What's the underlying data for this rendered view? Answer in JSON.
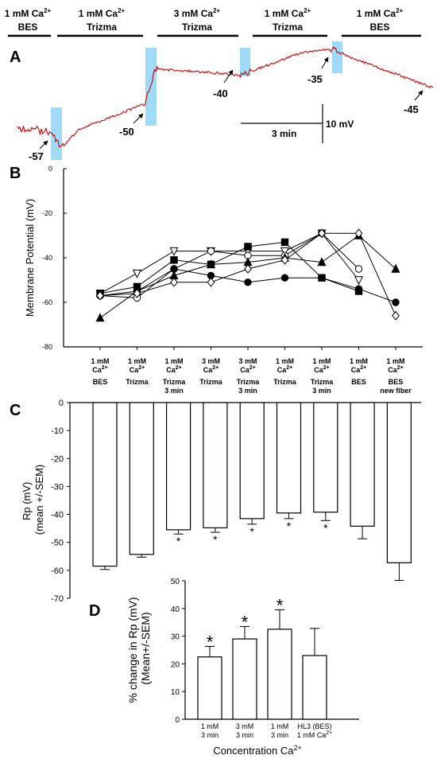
{
  "chart_data": [
    {
      "panel": "A",
      "type": "line",
      "label": "A",
      "condition_bars": [
        {
          "line1": "1 mM Ca",
          "line2": "BES",
          "sup": "2+"
        },
        {
          "line1": "1 mM Ca",
          "line2": "Trizma",
          "sup": "2+"
        },
        {
          "line1": "3 mM Ca",
          "line2": "Trizma",
          "sup": "2+"
        },
        {
          "line1": "1 mM Ca",
          "line2": "Trizma",
          "sup": "2+"
        },
        {
          "line1": "1 mM Ca",
          "line2": "BES",
          "sup": "2+"
        }
      ],
      "trace_levels_mV": [
        -57,
        -50,
        -40,
        -35,
        -45
      ],
      "value_labels": [
        "-57",
        "-50",
        "-40",
        "-35",
        "-45"
      ],
      "scale_bar": {
        "time": "3 min",
        "voltage": "10 mV"
      },
      "trace_color": "#cc0000",
      "highlight_color": "#8fd3f4"
    },
    {
      "panel": "B",
      "type": "line",
      "label": "B",
      "ylabel": "Membrane Potential (mV)",
      "ylim": [
        -80,
        0
      ],
      "yticks": [
        "0",
        "-20",
        "-40",
        "-60",
        "-80"
      ],
      "categories": [
        {
          "l1": "1 mM",
          "l2": "Ca",
          "sup": "2+",
          "l3": "BES",
          "l4": ""
        },
        {
          "l1": "1 mM",
          "l2": "Ca",
          "sup": "2+",
          "l3": "Trizma",
          "l4": ""
        },
        {
          "l1": "1 mM",
          "l2": "Ca",
          "sup": "2+",
          "l3": "Trizma",
          "l4": "3 min"
        },
        {
          "l1": "3 mM",
          "l2": "Ca",
          "sup": "2+",
          "l3": "Trizma",
          "l4": ""
        },
        {
          "l1": "3 mM",
          "l2": "Ca",
          "sup": "2+",
          "l3": "Trizma",
          "l4": "3 min"
        },
        {
          "l1": "1 mM",
          "l2": "Ca",
          "sup": "2+",
          "l3": "Trizma",
          "l4": ""
        },
        {
          "l1": "1 mM",
          "l2": "Ca",
          "sup": "2+",
          "l3": "Trizma",
          "l4": "3 min"
        },
        {
          "l1": "1 mM",
          "l2": "Ca",
          "sup": "2+",
          "l3": "BES",
          "l4": ""
        },
        {
          "l1": "1 mM",
          "l2": "Ca",
          "sup": "2+",
          "l3": "BES",
          "l4": "new fiber"
        }
      ],
      "series": [
        {
          "marker": "triangle-down-open",
          "values": [
            -56,
            -47,
            -37,
            -37,
            -37,
            -37,
            -29,
            -50,
            null
          ]
        },
        {
          "marker": "circle-open",
          "values": [
            -57,
            -58,
            -45,
            -37,
            -39,
            -39,
            -29,
            -45,
            null
          ]
        },
        {
          "marker": "square-filled",
          "values": [
            -56,
            -53,
            -41,
            -43,
            -35,
            -33,
            -49,
            -55,
            null
          ]
        },
        {
          "marker": "circle-filled",
          "values": [
            -57,
            -55,
            -45,
            -48,
            -51,
            -49,
            -49,
            -54,
            -60
          ]
        },
        {
          "marker": "triangle-up-filled",
          "values": [
            -67,
            -55,
            -48,
            -43,
            -42,
            -40,
            -42,
            -30,
            -45
          ]
        },
        {
          "marker": "diamond-open",
          "values": [
            -57,
            -56,
            -51,
            -51,
            -45,
            -41,
            -29,
            -29,
            -66
          ]
        }
      ]
    },
    {
      "panel": "C",
      "type": "bar",
      "label": "C",
      "ylabel_line1": "Rp (mV)",
      "ylabel_line2": "(mean +/-SEM)",
      "ylim": [
        -70,
        0
      ],
      "yticks": [
        "0",
        "-10",
        "-20",
        "-30",
        "-40",
        "-50",
        "-60",
        "-70"
      ],
      "values": [
        -58.5,
        -54.3,
        -45.5,
        -44.8,
        -41.5,
        -39.5,
        -39.2,
        -44.2,
        -57.3
      ],
      "sem": [
        1.2,
        1.0,
        1.5,
        1.6,
        2.0,
        2.0,
        3.0,
        4.5,
        6.3
      ],
      "significant": [
        false,
        false,
        true,
        true,
        true,
        true,
        true,
        false,
        false
      ],
      "star": "*"
    },
    {
      "panel": "D",
      "type": "bar",
      "label": "D",
      "ylabel_line1": "% change in Rp (mV)",
      "ylabel_line2": "(Mean+/-SEM)",
      "xlabel": "Concentration Ca",
      "xlabel_sup": "2+",
      "ylim": [
        0,
        50
      ],
      "yticks": [
        "0",
        "10",
        "20",
        "30",
        "40",
        "50"
      ],
      "categories": [
        {
          "l1": "1 mM",
          "l2": "3 min",
          "sup": ""
        },
        {
          "l1": "3 mM",
          "l2": "3 min",
          "sup": ""
        },
        {
          "l1": "1 mM",
          "l2": "3 min",
          "sup": ""
        },
        {
          "l1": "HL3 (BES)",
          "l2": "1 mM Ca",
          "sup": "2+"
        }
      ],
      "values": [
        22.5,
        29,
        32.5,
        23
      ],
      "sem": [
        3.8,
        4.5,
        7,
        9.8
      ],
      "significant": [
        true,
        true,
        true,
        false
      ],
      "star": "*"
    }
  ]
}
